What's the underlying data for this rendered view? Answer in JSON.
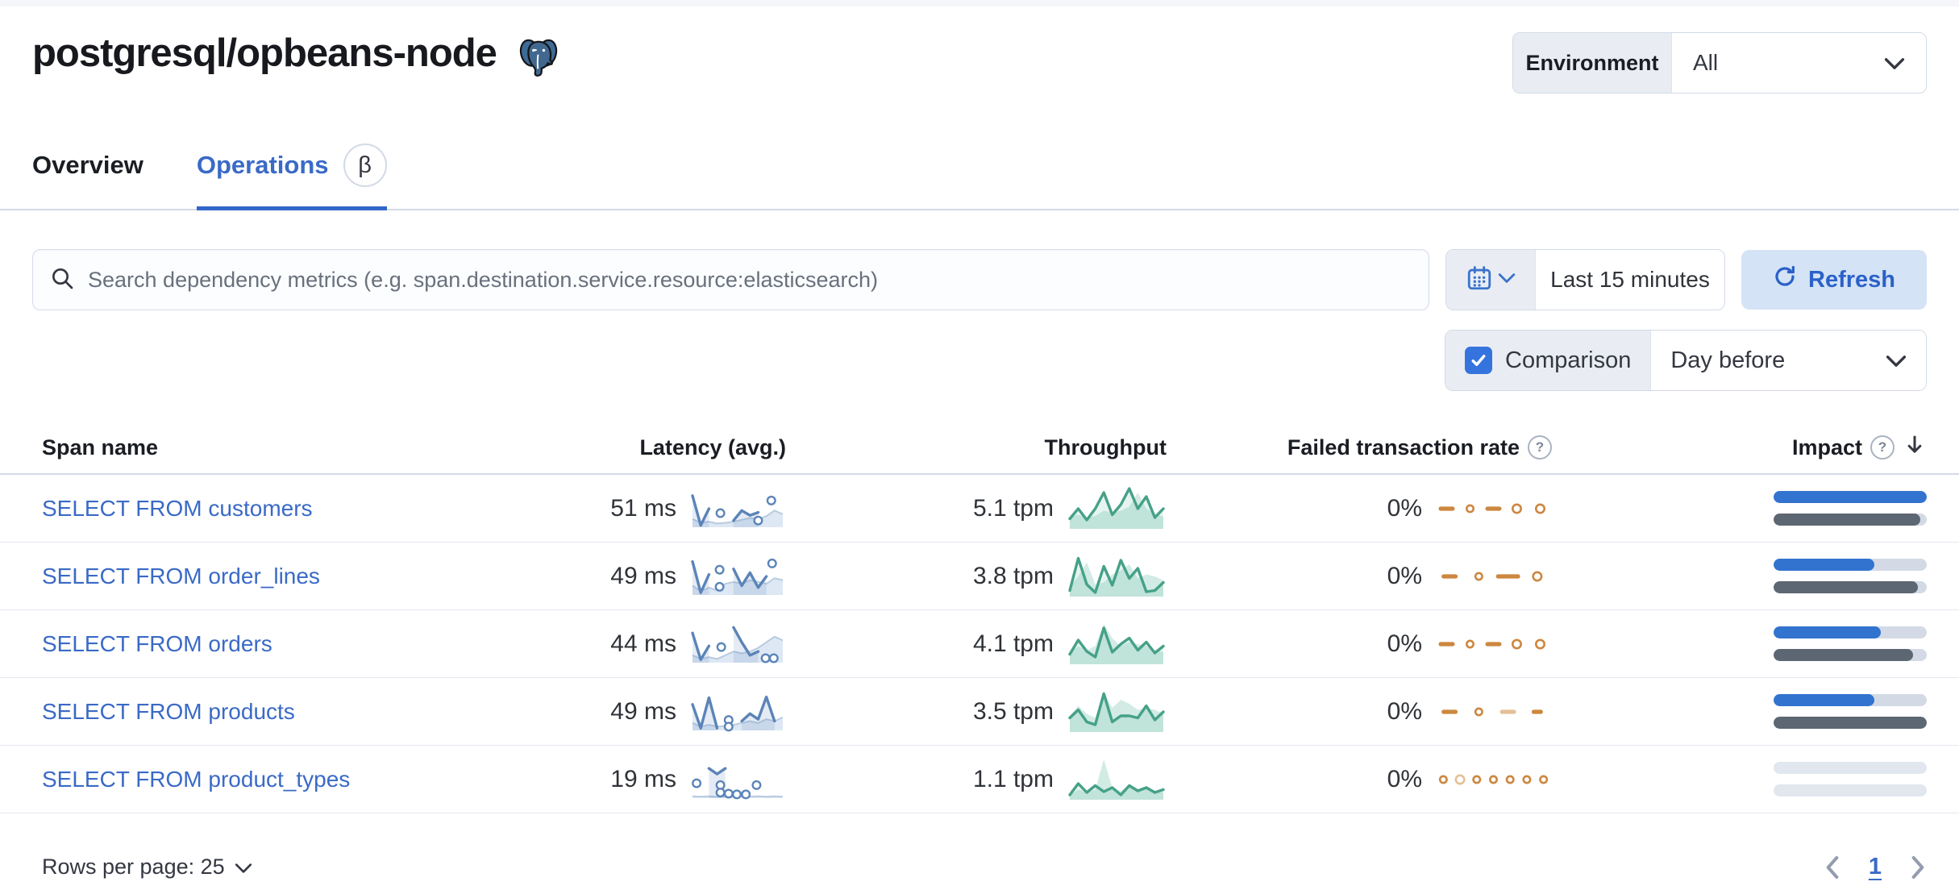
{
  "header": {
    "title": "postgresql/opbeans-node",
    "environment_label": "Environment",
    "environment_value": "All"
  },
  "tabs": [
    {
      "label": "Overview",
      "active": false
    },
    {
      "label": "Operations",
      "active": true,
      "badge": "β"
    }
  ],
  "toolbar": {
    "search_placeholder": "Search dependency metrics (e.g. span.destination.service.resource:elasticsearch)",
    "time_range": "Last 15 minutes",
    "refresh_label": "Refresh"
  },
  "comparison": {
    "label": "Comparison",
    "checked": true,
    "value": "Day before"
  },
  "icons": {
    "help": "?"
  },
  "colors": {
    "accent_blue": "#3a6ac6",
    "bar_blue": "#3273cf",
    "bar_gray": "#5d6673",
    "track_gray": "#d3dae6",
    "green": "#45a187",
    "green_fill": "rgba(84,179,153,0.26)",
    "green_fill_light": "rgba(84,179,153,0.15)",
    "latency_blue": "#5b84b8",
    "latency_comp_line": "#b9cbe0",
    "latency_comp_fill": "#dde8f4",
    "latency_fill": "rgba(91,132,184,0.16)",
    "orange": "#cd873f",
    "orange_light": "#e4c096"
  },
  "table": {
    "columns": [
      "Span name",
      "Latency (avg.)",
      "Throughput",
      "Failed transaction rate",
      "Impact"
    ],
    "rows": [
      {
        "span_name": "SELECT FROM customers",
        "latency": "51 ms",
        "throughput": "5.1 tpm",
        "failed_rate": "0%",
        "impact_current": 100,
        "impact_previous": 96,
        "impact_muted": false,
        "latency_spark": {
          "line": [
            0.85,
            0.05,
            0.5,
            null,
            null,
            0.18,
            0.45,
            0.32,
            0.4,
            null,
            null,
            null
          ],
          "dots": [
            [
              3.4,
              0.38
            ],
            [
              8.0,
              0.18
            ],
            [
              9.6,
              0.72
            ]
          ],
          "comparison": [
            0.22,
            0.12,
            0.15,
            0.1,
            0.12,
            0.15,
            0.2,
            0.25,
            0.22,
            0.3,
            0.45,
            0.35
          ]
        },
        "throughput_spark": {
          "line": [
            0.25,
            0.5,
            0.22,
            0.5,
            0.9,
            0.35,
            0.6,
            1.0,
            0.5,
            0.8,
            0.28,
            0.5
          ],
          "comparison": [
            0.3,
            0.35,
            0.28,
            0.32,
            0.45,
            0.4,
            0.45,
            0.55,
            0.9,
            0.5,
            0.38,
            0.3
          ]
        },
        "failed_spark": [
          "dash",
          "circle-sm",
          "dash",
          "circle",
          "circle"
        ]
      },
      {
        "span_name": "SELECT FROM order_lines",
        "latency": "49 ms",
        "throughput": "3.8 tpm",
        "failed_rate": "0%",
        "impact_current": 66,
        "impact_previous": 94,
        "impact_muted": false,
        "latency_spark": {
          "line": [
            0.9,
            0.06,
            0.55,
            null,
            null,
            0.7,
            0.25,
            0.6,
            0.2,
            0.5,
            null,
            null
          ],
          "dots": [
            [
              3.3,
              0.68
            ],
            [
              3.3,
              0.22
            ],
            [
              9.7,
              0.85
            ]
          ],
          "comparison": [
            0.25,
            0.1,
            0.2,
            0.12,
            0.3,
            0.35,
            0.3,
            0.4,
            0.35,
            0.3,
            0.45,
            0.4
          ]
        },
        "throughput_spark": {
          "line": [
            0.15,
            0.95,
            0.3,
            0.1,
            0.75,
            0.28,
            0.9,
            0.45,
            0.7,
            0.12,
            0.15,
            0.35
          ],
          "comparison": [
            0.25,
            0.5,
            0.85,
            0.3,
            0.35,
            0.55,
            0.65,
            0.8,
            0.45,
            0.55,
            0.5,
            0.4
          ]
        },
        "failed_spark": [
          "dash",
          "circle-sm",
          "dash-long",
          "circle"
        ]
      },
      {
        "span_name": "SELECT FROM orders",
        "latency": "44 ms",
        "throughput": "4.1 tpm",
        "failed_rate": "0%",
        "impact_current": 70,
        "impact_previous": 91,
        "impact_muted": false,
        "latency_spark": {
          "line": [
            0.8,
            0.08,
            0.45,
            null,
            null,
            0.95,
            0.55,
            0.2,
            0.3,
            null,
            null,
            null
          ],
          "dots": [
            [
              3.5,
              0.42
            ],
            [
              8.9,
              0.12
            ],
            [
              9.9,
              0.12
            ]
          ],
          "comparison": [
            0.2,
            0.1,
            0.15,
            0.1,
            0.2,
            0.3,
            0.25,
            0.3,
            0.4,
            0.55,
            0.7,
            0.6
          ]
        },
        "throughput_spark": {
          "line": [
            0.25,
            0.6,
            0.32,
            0.18,
            0.9,
            0.3,
            0.5,
            0.65,
            0.35,
            0.55,
            0.28,
            0.45
          ],
          "comparison": [
            0.3,
            0.45,
            0.35,
            0.45,
            1.0,
            0.65,
            0.45,
            0.55,
            0.5,
            0.45,
            0.35,
            0.3
          ]
        },
        "failed_spark": [
          "dash",
          "circle-sm",
          "dash",
          "circle",
          "circle"
        ]
      },
      {
        "span_name": "SELECT FROM products",
        "latency": "49 ms",
        "throughput": "3.5 tpm",
        "failed_rate": "0%",
        "impact_current": 66,
        "impact_previous": 100,
        "impact_muted": false,
        "latency_spark": {
          "line": [
            0.7,
            0.06,
            0.88,
            0.06,
            null,
            null,
            0.25,
            0.45,
            0.3,
            0.9,
            0.25,
            null
          ],
          "dots": [
            [
              4.4,
              0.28
            ],
            [
              4.4,
              0.1
            ]
          ],
          "comparison": [
            0.2,
            0.1,
            0.15,
            0.1,
            0.12,
            0.15,
            0.2,
            0.25,
            0.2,
            0.3,
            0.25,
            0.35
          ]
        },
        "throughput_spark": {
          "line": [
            0.35,
            0.55,
            0.25,
            0.18,
            0.95,
            0.25,
            0.4,
            0.4,
            0.35,
            0.65,
            0.3,
            0.5
          ],
          "comparison": [
            0.4,
            0.65,
            0.45,
            0.35,
            1.0,
            0.6,
            0.8,
            0.7,
            0.55,
            0.6,
            0.55,
            0.45
          ]
        },
        "failed_spark": [
          "dash",
          "circle-sm",
          "dash-light",
          "dash-sm"
        ]
      },
      {
        "span_name": "SELECT FROM product_types",
        "latency": "19 ms",
        "throughput": "1.1 tpm",
        "failed_rate": "0%",
        "impact_current": 0,
        "impact_previous": 0,
        "impact_muted": true,
        "latency_spark": {
          "line": [
            null,
            null,
            0.8,
            0.65,
            0.8,
            null,
            null,
            null,
            null,
            null,
            null,
            null
          ],
          "dots": [
            [
              0.5,
              0.4
            ],
            [
              3.4,
              0.35
            ],
            [
              3.4,
              0.15
            ],
            [
              4.4,
              0.12
            ],
            [
              5.4,
              0.1
            ],
            [
              6.5,
              0.1
            ],
            [
              7.8,
              0.35
            ]
          ],
          "comparison": [
            0.05,
            0.04,
            0.05,
            0.04,
            0.05,
            0.04,
            0.05,
            0.04,
            0.05,
            0.04,
            0.05,
            0.04
          ]
        },
        "throughput_spark": {
          "line": [
            0.12,
            0.4,
            0.18,
            0.35,
            0.2,
            0.3,
            0.12,
            0.35,
            0.22,
            0.3,
            0.18,
            0.25
          ],
          "comparison": [
            0.12,
            0.25,
            0.18,
            0.25,
            1.0,
            0.3,
            0.22,
            0.35,
            0.25,
            0.3,
            0.22,
            0.18
          ]
        },
        "failed_spark": [
          "circle-sm",
          "circle-light",
          "circle-sm",
          "circle-sm",
          "circle-sm",
          "circle-sm",
          "circle-sm"
        ]
      }
    ]
  },
  "pagination": {
    "rows_per_page_label": "Rows per page: 25",
    "current_page": "1"
  }
}
